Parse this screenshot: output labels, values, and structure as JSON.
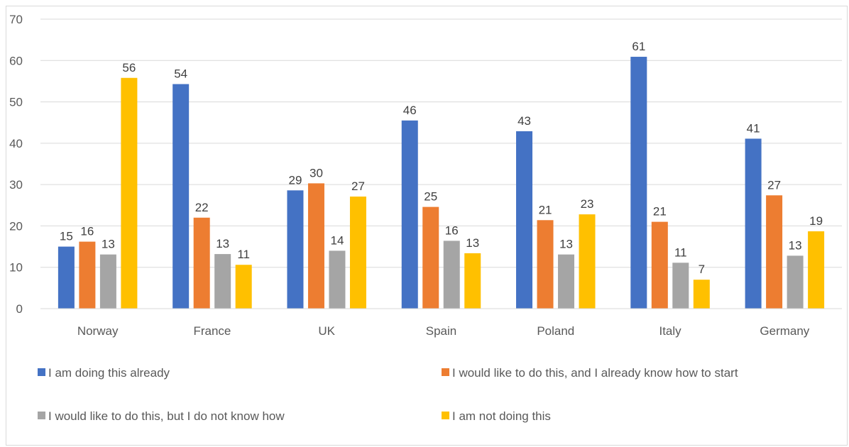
{
  "chart_data": {
    "type": "bar",
    "categories": [
      "Norway",
      "France",
      "UK",
      "Spain",
      "Poland",
      "Italy",
      "Germany"
    ],
    "series": [
      {
        "name": "I am doing this already",
        "color": "#4472C4",
        "values": [
          15,
          54,
          29,
          46,
          43,
          61,
          41
        ],
        "plot_values": [
          15,
          54.3,
          28.6,
          45.5,
          42.9,
          60.9,
          41.1
        ]
      },
      {
        "name": "I would like to do this, and I already know how to start",
        "color": "#ED7D31",
        "values": [
          16,
          22,
          30,
          25,
          21,
          21,
          27
        ],
        "plot_values": [
          16.2,
          22,
          30.3,
          24.6,
          21.4,
          21,
          27.4
        ]
      },
      {
        "name": "I would like to do this, but I do not know how",
        "color": "#A5A5A5",
        "values": [
          13,
          13,
          14,
          16,
          13,
          11,
          13
        ],
        "plot_values": [
          13.1,
          13.2,
          14,
          16.4,
          13.1,
          11.1,
          12.8
        ]
      },
      {
        "name": "I am not doing this",
        "color": "#FFC000",
        "values": [
          56,
          11,
          27,
          13,
          23,
          7,
          19
        ],
        "plot_values": [
          55.8,
          10.6,
          27.1,
          13.4,
          22.8,
          7,
          18.7
        ]
      }
    ],
    "title": "",
    "xlabel": "",
    "ylabel": "",
    "ylim": [
      0,
      70
    ],
    "yticks": [
      0,
      10,
      20,
      30,
      40,
      50,
      60,
      70
    ],
    "grid": true,
    "legend": "bottom"
  }
}
